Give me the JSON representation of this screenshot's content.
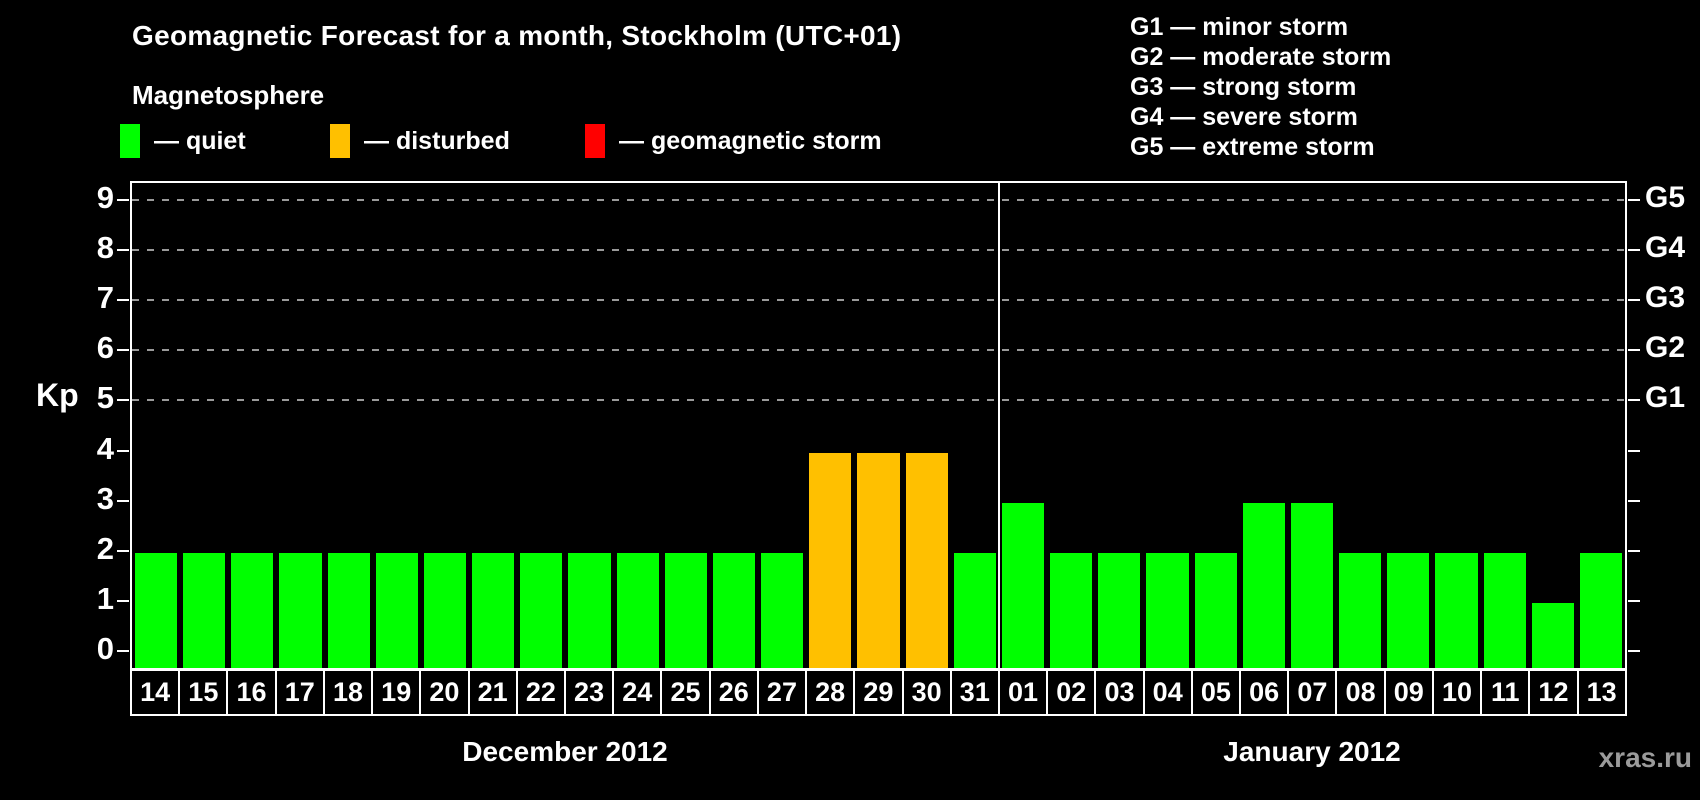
{
  "title": "Geomagnetic Forecast for a month, Stockholm (UTC+01)",
  "magnetosphere_legend": {
    "heading": "Magnetosphere",
    "items": [
      {
        "name": "quiet",
        "label": "— quiet",
        "color": "#00ff00"
      },
      {
        "name": "disturbed",
        "label": "— disturbed",
        "color": "#ffc000"
      },
      {
        "name": "storm",
        "label": "— geomagnetic storm",
        "color": "#ff0000"
      }
    ]
  },
  "storm_scale_legend": [
    "G1 — minor storm",
    "G2 — moderate storm",
    "G3 — strong storm",
    "G4 — severe storm",
    "G5 — extreme storm"
  ],
  "watermark": "xras.ru",
  "chart_data": {
    "type": "bar",
    "title": "Geomagnetic Forecast for a month, Stockholm (UTC+01)",
    "ylabel": "Kp",
    "ylim": [
      0,
      9
    ],
    "yticks": [
      0,
      1,
      2,
      3,
      4,
      5,
      6,
      7,
      8,
      9
    ],
    "gridlines_at_kp": [
      5,
      6,
      7,
      8,
      9
    ],
    "grid_style": "dashed-horizontal",
    "right_axis": [
      {
        "kp": 5,
        "label": "G1"
      },
      {
        "kp": 6,
        "label": "G2"
      },
      {
        "kp": 7,
        "label": "G3"
      },
      {
        "kp": 8,
        "label": "G4"
      },
      {
        "kp": 9,
        "label": "G5"
      }
    ],
    "colors": {
      "quiet": "#00ff00",
      "disturbed": "#ffc000",
      "storm": "#ff0000"
    },
    "months": [
      {
        "label": "December 2012",
        "days": [
          {
            "day": "14",
            "kp": 2,
            "status": "quiet"
          },
          {
            "day": "15",
            "kp": 2,
            "status": "quiet"
          },
          {
            "day": "16",
            "kp": 2,
            "status": "quiet"
          },
          {
            "day": "17",
            "kp": 2,
            "status": "quiet"
          },
          {
            "day": "18",
            "kp": 2,
            "status": "quiet"
          },
          {
            "day": "19",
            "kp": 2,
            "status": "quiet"
          },
          {
            "day": "20",
            "kp": 2,
            "status": "quiet"
          },
          {
            "day": "21",
            "kp": 2,
            "status": "quiet"
          },
          {
            "day": "22",
            "kp": 2,
            "status": "quiet"
          },
          {
            "day": "23",
            "kp": 2,
            "status": "quiet"
          },
          {
            "day": "24",
            "kp": 2,
            "status": "quiet"
          },
          {
            "day": "25",
            "kp": 2,
            "status": "quiet"
          },
          {
            "day": "26",
            "kp": 2,
            "status": "quiet"
          },
          {
            "day": "27",
            "kp": 2,
            "status": "quiet"
          },
          {
            "day": "28",
            "kp": 4,
            "status": "disturbed"
          },
          {
            "day": "29",
            "kp": 4,
            "status": "disturbed"
          },
          {
            "day": "30",
            "kp": 4,
            "status": "disturbed"
          },
          {
            "day": "31",
            "kp": 2,
            "status": "quiet"
          }
        ]
      },
      {
        "label": "January 2012",
        "days": [
          {
            "day": "01",
            "kp": 3,
            "status": "quiet"
          },
          {
            "day": "02",
            "kp": 2,
            "status": "quiet"
          },
          {
            "day": "03",
            "kp": 2,
            "status": "quiet"
          },
          {
            "day": "04",
            "kp": 2,
            "status": "quiet"
          },
          {
            "day": "05",
            "kp": 2,
            "status": "quiet"
          },
          {
            "day": "06",
            "kp": 3,
            "status": "quiet"
          },
          {
            "day": "07",
            "kp": 3,
            "status": "quiet"
          },
          {
            "day": "08",
            "kp": 2,
            "status": "quiet"
          },
          {
            "day": "09",
            "kp": 2,
            "status": "quiet"
          },
          {
            "day": "10",
            "kp": 2,
            "status": "quiet"
          },
          {
            "day": "11",
            "kp": 2,
            "status": "quiet"
          },
          {
            "day": "12",
            "kp": 1,
            "status": "quiet"
          },
          {
            "day": "13",
            "kp": 2,
            "status": "quiet"
          }
        ]
      }
    ]
  }
}
